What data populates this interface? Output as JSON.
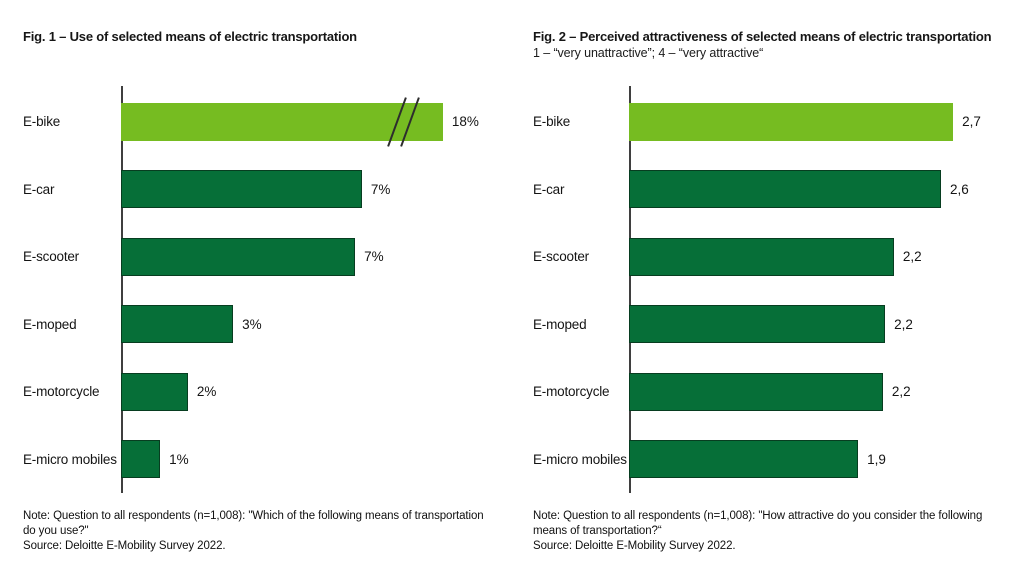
{
  "colors": {
    "bar_light_green": "#76BC21",
    "bar_dark_green": "#066F38",
    "axis_line": "#3F3F3F",
    "text": "#1B1B1B",
    "background": "#FFFFFF"
  },
  "chart_data": [
    {
      "type": "bar",
      "orientation": "horizontal",
      "title": "Fig. 1 – Use of selected means of electric transportation",
      "subtitle": "",
      "categories": [
        "E-bike",
        "E-car",
        "E-scooter",
        "E-moped",
        "E-motorcycle",
        "E-micro mobiles"
      ],
      "values": [
        18,
        7,
        7,
        3,
        2,
        1
      ],
      "value_labels": [
        "18%",
        "7%",
        "7%",
        "3%",
        "2%",
        "1%"
      ],
      "unit": "percent of respondents",
      "legend": "none",
      "grid": "off",
      "axis_break_on_first_bar": true,
      "display_pct": [
        84.7,
        63.4,
        61.6,
        29.5,
        17.6,
        10.3
      ],
      "note": "Note: Question to all respondents (n=1,008): \"Which of the following means of transportation do you use?\"",
      "source": "Source: Deloitte E-Mobility Survey 2022."
    },
    {
      "type": "bar",
      "orientation": "horizontal",
      "title": "Fig. 2 – Perceived attractiveness of selected means of electric transportation",
      "subtitle": "1 – “very unattractive”; 4 – “very attractive“",
      "categories": [
        "E-bike",
        "E-car",
        "E-scooter",
        "E-moped",
        "E-motorcycle",
        "E-micro mobiles"
      ],
      "values": [
        2.7,
        2.6,
        2.2,
        2.2,
        2.2,
        1.9
      ],
      "value_labels": [
        "2,7",
        "2,6",
        "2,2",
        "2,2",
        "2,2",
        "1,9"
      ],
      "unit": "mean score, scale 1–4",
      "legend": "none",
      "grid": "off",
      "axis_break_on_first_bar": false,
      "display_pct": [
        85.3,
        82.1,
        69.7,
        67.4,
        66.8,
        60.3
      ],
      "note": "Note: Question to all respondents (n=1,008): \"How attractive do you consider the following means of transportation?“",
      "source": "Source: Deloitte E-Mobility Survey 2022."
    }
  ]
}
